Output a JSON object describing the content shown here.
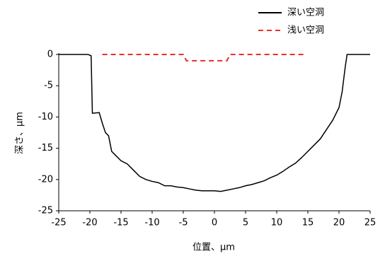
{
  "chart_data": {
    "type": "line",
    "xlabel": "位置、μm",
    "ylabel": "深さ、μm",
    "xlim": [
      -25,
      25
    ],
    "xticks": [
      -25,
      -20,
      -15,
      -10,
      -5,
      0,
      5,
      10,
      15,
      20,
      25
    ],
    "ylim": [
      -25,
      0
    ],
    "yticks": [
      -25,
      -20,
      -15,
      -10,
      -5,
      0
    ],
    "series": [
      {
        "name": "深い空洞",
        "color": "#000000",
        "dash": false,
        "x": [
          -25,
          -20.3,
          -19.8,
          -19.6,
          -18.5,
          -18,
          -17.5,
          -17,
          -16.5,
          -16,
          -15,
          -14,
          -13,
          -12,
          -11,
          -10,
          -9,
          -8,
          -7,
          -6,
          -5,
          -4,
          -3,
          -2,
          -1,
          0,
          1,
          2,
          3,
          4,
          5,
          6,
          7,
          8,
          9,
          10,
          11,
          12,
          13,
          14,
          15,
          16,
          17,
          18,
          19,
          20,
          20.5,
          21,
          21.3,
          22,
          25
        ],
        "values": [
          0,
          0,
          -0.2,
          -9.4,
          -9.3,
          -11,
          -12.5,
          -13,
          -15.5,
          -16,
          -17,
          -17.5,
          -18.5,
          -19.5,
          -20,
          -20.3,
          -20.5,
          -21,
          -21,
          -21.2,
          -21.3,
          -21.5,
          -21.7,
          -21.8,
          -21.8,
          -21.8,
          -21.9,
          -21.7,
          -21.5,
          -21.3,
          -21,
          -20.8,
          -20.5,
          -20.2,
          -19.7,
          -19.3,
          -18.7,
          -18,
          -17.4,
          -16.5,
          -15.5,
          -14.5,
          -13.5,
          -12,
          -10.5,
          -8.5,
          -6,
          -2,
          0,
          0,
          0
        ]
      },
      {
        "name": "浅い空洞",
        "color": "#e8302a",
        "dash": true,
        "x": [
          -18,
          -5,
          -4.5,
          2,
          2.5,
          14.5
        ],
        "values": [
          0,
          0,
          -1,
          -1,
          0,
          0
        ]
      }
    ]
  }
}
